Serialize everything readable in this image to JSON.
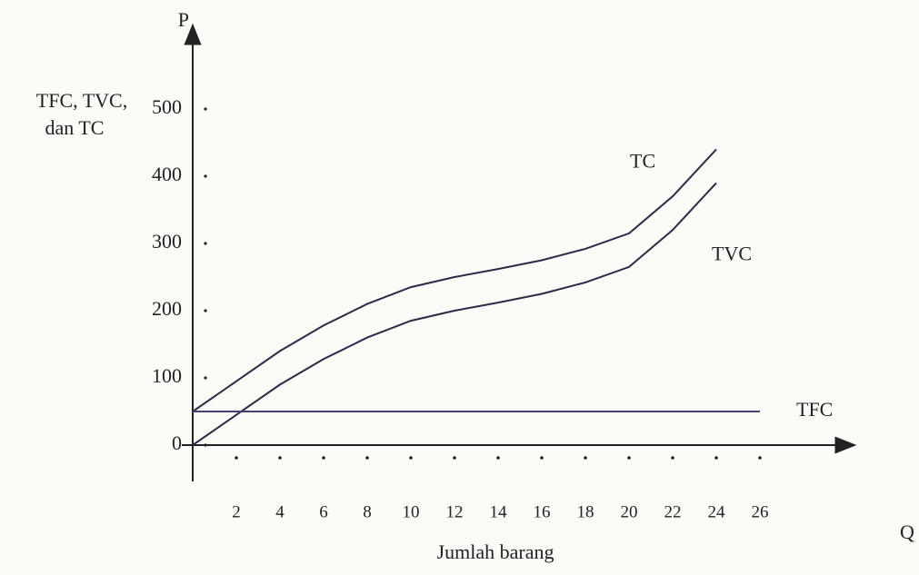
{
  "chart_data": {
    "type": "line",
    "y_axis_symbol": "P",
    "x_axis_symbol": "Q",
    "y_label_lines": [
      "TFC, TVC,",
      "dan TC"
    ],
    "x_label": "Jumlah barang",
    "x": [
      0,
      2,
      4,
      6,
      8,
      10,
      12,
      14,
      16,
      18,
      20,
      22,
      24,
      26
    ],
    "series": [
      {
        "name": "TC",
        "color": "#2b2b45",
        "values": [
          50,
          95,
          140,
          178,
          210,
          235,
          250,
          262,
          275,
          292,
          315,
          370,
          440,
          null
        ]
      },
      {
        "name": "TVC",
        "color": "#2b2b45",
        "values": [
          0,
          45,
          90,
          128,
          160,
          185,
          200,
          212,
          225,
          242,
          265,
          320,
          390,
          null
        ]
      },
      {
        "name": "TFC",
        "color": "#4a3f6e",
        "values": [
          50,
          50,
          50,
          50,
          50,
          50,
          50,
          50,
          50,
          50,
          50,
          50,
          50,
          50
        ]
      }
    ],
    "xlim": [
      0,
      30
    ],
    "ylim": [
      0,
      600
    ],
    "xticks": [
      2,
      4,
      6,
      8,
      10,
      12,
      14,
      16,
      18,
      20,
      22,
      24,
      26
    ],
    "yticks": [
      0,
      100,
      200,
      300,
      400,
      500
    ],
    "grid": false
  }
}
